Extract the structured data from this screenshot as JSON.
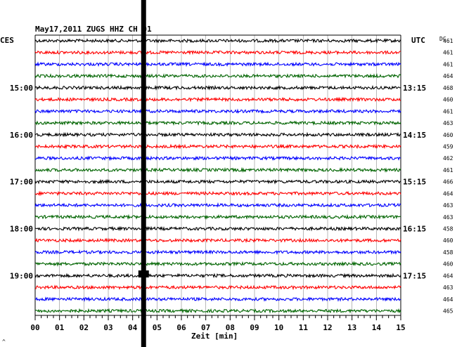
{
  "header": {
    "title": "May17,2011   ZUGS HHZ CH 01",
    "left_label": "CES",
    "right_label": "UTC",
    "dc_label": "DC"
  },
  "chart_data": {
    "type": "line",
    "title": "May17,2011   ZUGS HHZ CH 01",
    "xlabel": "Zeit [min]",
    "xlim": [
      0,
      15
    ],
    "x_ticks": [
      "00",
      "01",
      "02",
      "03",
      "04",
      "05",
      "06",
      "07",
      "08",
      "09",
      "10",
      "11",
      "12",
      "13",
      "14",
      "15"
    ],
    "left_time_labels": [
      {
        "trace": 4,
        "label": "15:00"
      },
      {
        "trace": 8,
        "label": "16:00"
      },
      {
        "trace": 12,
        "label": "17:00"
      },
      {
        "trace": 16,
        "label": "18:00"
      },
      {
        "trace": 20,
        "label": "19:00"
      }
    ],
    "right_time_labels": [
      {
        "trace": 4,
        "label": "13:15"
      },
      {
        "trace": 8,
        "label": "14:15"
      },
      {
        "trace": 12,
        "label": "15:15"
      },
      {
        "trace": 16,
        "label": "16:15"
      },
      {
        "trace": 20,
        "label": "17:15"
      }
    ],
    "dc_offsets": [
      461,
      461,
      461,
      464,
      468,
      460,
      461,
      463,
      460,
      459,
      462,
      461,
      466,
      464,
      463,
      463,
      458,
      460,
      458,
      460,
      464,
      463,
      464,
      465
    ],
    "trace_colors": [
      "#000000",
      "#ff0000",
      "#0000ff",
      "#006400"
    ],
    "gap": {
      "from_min": 4.35,
      "to_min": 4.55
    },
    "grid": true
  },
  "footer": {
    "mark": "^"
  }
}
